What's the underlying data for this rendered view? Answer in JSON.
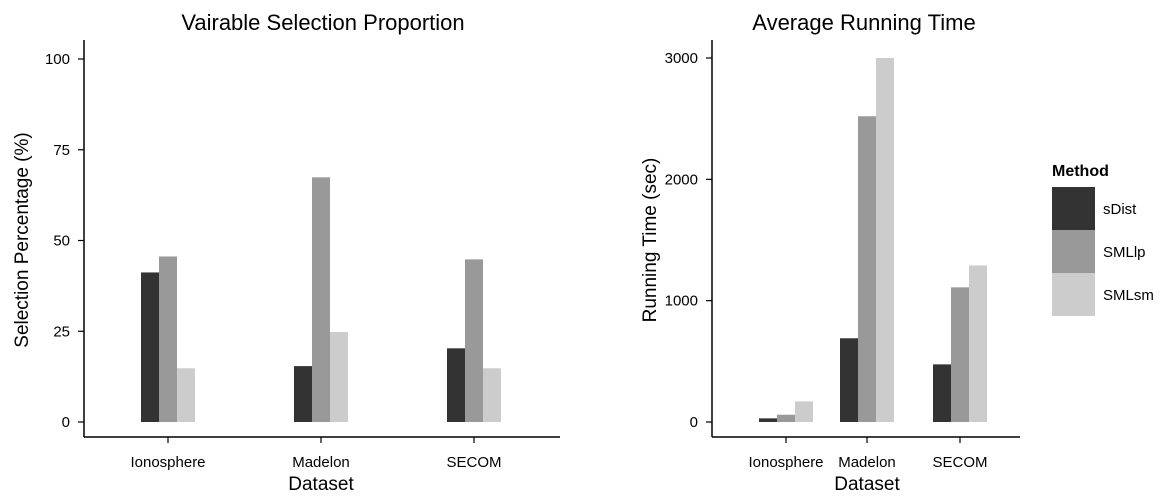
{
  "legend": {
    "title": "Method",
    "entries": [
      "sDist",
      "SMLlp",
      "SMLsm"
    ]
  },
  "colors": {
    "sDist": "#333333",
    "SMLlp": "#999999",
    "SMLsm": "#cccccc"
  },
  "chart_data": [
    {
      "type": "bar",
      "title": "Vairable Selection Proportion",
      "xlabel": "",
      "ylabel": "Selection Percentage (%)",
      "categories": [
        "Ionosphere",
        "Madelon",
        "SECOM"
      ],
      "series": [
        {
          "name": "sDist",
          "values": [
            41.2,
            15.4,
            20.3
          ]
        },
        {
          "name": "SMLlp",
          "values": [
            45.6,
            67.4,
            44.8
          ]
        },
        {
          "name": "SMLsm",
          "values": [
            14.8,
            24.8,
            14.8
          ]
        }
      ],
      "ylim": [
        0,
        100
      ],
      "yticks": [
        0,
        25,
        50,
        75,
        100
      ],
      "grid": false
    },
    {
      "type": "bar",
      "title": "Average Running Time",
      "xlabel": "Dataset",
      "ylabel": "Running Time (sec)",
      "categories": [
        "Ionosphere",
        "Madelon",
        "SECOM"
      ],
      "series": [
        {
          "name": "sDist",
          "values": [
            30,
            690,
            475
          ]
        },
        {
          "name": "SMLlp",
          "values": [
            60,
            2520,
            1110
          ]
        },
        {
          "name": "SMLsm",
          "values": [
            170,
            3000,
            1290
          ]
        }
      ],
      "ylim": [
        0,
        3000
      ],
      "yticks": [
        0,
        1000,
        2000,
        3000
      ],
      "grid": false
    }
  ],
  "shared_xlabel": "Dataset"
}
